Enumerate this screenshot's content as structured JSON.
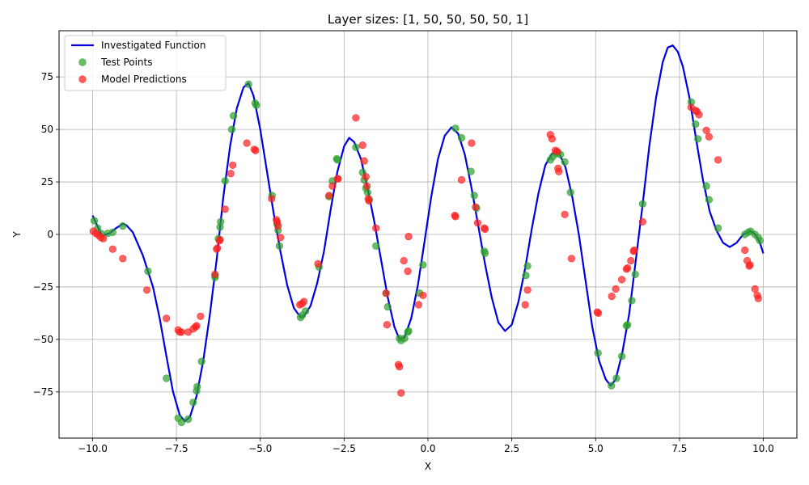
{
  "chart_data": {
    "type": "scatter",
    "title": "Layer sizes: [1, 50, 50, 50, 50, 1]",
    "xlabel": "X",
    "ylabel": "Y",
    "xlim": [
      -11,
      11
    ],
    "ylim": [
      -97,
      97
    ],
    "xticks": [
      -10,
      -7.5,
      -5,
      -2.5,
      0,
      2.5,
      5,
      7.5,
      10
    ],
    "xtick_labels": [
      "−10.0",
      "−7.5",
      "−5.0",
      "−2.5",
      "0.0",
      "2.5",
      "5.0",
      "7.5",
      "10.0"
    ],
    "yticks": [
      -75,
      -50,
      -25,
      0,
      25,
      50,
      75
    ],
    "ytick_labels": [
      "−75",
      "−50",
      "−25",
      "0",
      "25",
      "50",
      "75"
    ],
    "grid": true,
    "legend_position": "top-left",
    "legend": [
      {
        "label": "Investigated Function",
        "kind": "line",
        "color": "#0000dd"
      },
      {
        "label": "Test Points",
        "kind": "marker",
        "color": "#2ca02c"
      },
      {
        "label": "Model Predictions",
        "kind": "marker",
        "color": "#ff2020"
      }
    ],
    "series": [
      {
        "name": "Investigated Function",
        "kind": "line",
        "color": "#0000dd",
        "points": [
          [
            -10.0,
            9
          ],
          [
            -9.8,
            2
          ],
          [
            -9.7,
            -0.5
          ],
          [
            -9.5,
            0.5
          ],
          [
            -9.3,
            3
          ],
          [
            -9.1,
            5
          ],
          [
            -9.0,
            4.5
          ],
          [
            -8.8,
            1
          ],
          [
            -8.5,
            -10
          ],
          [
            -8.2,
            -25
          ],
          [
            -8.0,
            -40
          ],
          [
            -7.8,
            -58
          ],
          [
            -7.6,
            -75
          ],
          [
            -7.4,
            -86
          ],
          [
            -7.25,
            -89
          ],
          [
            -7.1,
            -87
          ],
          [
            -6.9,
            -77
          ],
          [
            -6.7,
            -60
          ],
          [
            -6.5,
            -38
          ],
          [
            -6.3,
            -12
          ],
          [
            -6.1,
            18
          ],
          [
            -5.9,
            42
          ],
          [
            -5.7,
            60
          ],
          [
            -5.5,
            70
          ],
          [
            -5.35,
            72
          ],
          [
            -5.2,
            66
          ],
          [
            -5.0,
            50
          ],
          [
            -4.8,
            30
          ],
          [
            -4.6,
            10
          ],
          [
            -4.4,
            -8
          ],
          [
            -4.2,
            -24
          ],
          [
            -4.0,
            -35
          ],
          [
            -3.8,
            -39.5
          ],
          [
            -3.7,
            -39
          ],
          [
            -3.5,
            -34
          ],
          [
            -3.3,
            -23
          ],
          [
            -3.1,
            -8
          ],
          [
            -2.9,
            12
          ],
          [
            -2.7,
            30
          ],
          [
            -2.5,
            42
          ],
          [
            -2.35,
            46
          ],
          [
            -2.2,
            44
          ],
          [
            -2.0,
            36
          ],
          [
            -1.8,
            22
          ],
          [
            -1.6,
            6
          ],
          [
            -1.4,
            -12
          ],
          [
            -1.2,
            -30
          ],
          [
            -1.0,
            -44
          ],
          [
            -0.85,
            -50
          ],
          [
            -0.7,
            -49
          ],
          [
            -0.5,
            -40
          ],
          [
            -0.3,
            -24
          ],
          [
            -0.1,
            -3
          ],
          [
            0.1,
            18
          ],
          [
            0.3,
            36
          ],
          [
            0.5,
            47
          ],
          [
            0.7,
            51
          ],
          [
            0.9,
            48
          ],
          [
            1.1,
            38
          ],
          [
            1.3,
            22
          ],
          [
            1.5,
            4
          ],
          [
            1.7,
            -14
          ],
          [
            1.9,
            -30
          ],
          [
            2.1,
            -42
          ],
          [
            2.3,
            -46
          ],
          [
            2.5,
            -43
          ],
          [
            2.7,
            -32
          ],
          [
            2.9,
            -16
          ],
          [
            3.1,
            3
          ],
          [
            3.3,
            20
          ],
          [
            3.5,
            33
          ],
          [
            3.7,
            38.5
          ],
          [
            3.9,
            39
          ],
          [
            4.1,
            32
          ],
          [
            4.3,
            18
          ],
          [
            4.5,
            0
          ],
          [
            4.7,
            -22
          ],
          [
            4.9,
            -44
          ],
          [
            5.1,
            -60
          ],
          [
            5.3,
            -69
          ],
          [
            5.45,
            -72
          ],
          [
            5.6,
            -69
          ],
          [
            5.8,
            -56
          ],
          [
            6.0,
            -38
          ],
          [
            6.2,
            -12
          ],
          [
            6.4,
            14
          ],
          [
            6.6,
            42
          ],
          [
            6.8,
            65
          ],
          [
            7.0,
            82
          ],
          [
            7.15,
            89
          ],
          [
            7.3,
            90
          ],
          [
            7.45,
            87
          ],
          [
            7.6,
            80
          ],
          [
            7.8,
            65
          ],
          [
            8.0,
            45
          ],
          [
            8.2,
            26
          ],
          [
            8.4,
            11
          ],
          [
            8.6,
            2
          ],
          [
            8.8,
            -4
          ],
          [
            9.0,
            -6
          ],
          [
            9.2,
            -4
          ],
          [
            9.4,
            0
          ],
          [
            9.6,
            1.5
          ],
          [
            9.7,
            1
          ],
          [
            9.8,
            -1
          ],
          [
            9.9,
            -4
          ],
          [
            10.0,
            -9
          ]
        ]
      },
      {
        "name": "Test Points",
        "kind": "scatter",
        "color": "#2ca02c",
        "points": [
          [
            -9.95,
            6.5
          ],
          [
            -9.85,
            3
          ],
          [
            -9.75,
            0.5
          ],
          [
            -9.55,
            0.5
          ],
          [
            -9.4,
            1
          ],
          [
            -9.1,
            4
          ],
          [
            -8.35,
            -17.5
          ],
          [
            -7.8,
            -68.5
          ],
          [
            -7.45,
            -87.5
          ],
          [
            -7.35,
            -89.5
          ],
          [
            -7.15,
            -88
          ],
          [
            -7.0,
            -80
          ],
          [
            -6.9,
            -74.5
          ],
          [
            -6.88,
            -72.5
          ],
          [
            -6.75,
            -60.5
          ],
          [
            -6.35,
            -20.5
          ],
          [
            -6.35,
            -19.5
          ],
          [
            -6.25,
            -2
          ],
          [
            -6.2,
            3.5
          ],
          [
            -6.18,
            6
          ],
          [
            -6.05,
            25.5
          ],
          [
            -5.85,
            50
          ],
          [
            -5.8,
            56.5
          ],
          [
            -5.35,
            71.5
          ],
          [
            -5.15,
            62.5
          ],
          [
            -5.12,
            61.5
          ],
          [
            -4.65,
            18.5
          ],
          [
            -4.5,
            5
          ],
          [
            -4.47,
            2
          ],
          [
            -4.43,
            -5.5
          ],
          [
            -3.8,
            -39.5
          ],
          [
            -3.75,
            -38.5
          ],
          [
            -3.65,
            -36.5
          ],
          [
            -3.25,
            -15.5
          ],
          [
            -2.95,
            18
          ],
          [
            -2.85,
            25.5
          ],
          [
            -2.72,
            36
          ],
          [
            -2.7,
            35.5
          ],
          [
            -2.15,
            41.5
          ],
          [
            -1.95,
            29.5
          ],
          [
            -1.9,
            26
          ],
          [
            -1.85,
            22
          ],
          [
            -1.8,
            20
          ],
          [
            -1.75,
            16.5
          ],
          [
            -1.55,
            -5.5
          ],
          [
            -1.25,
            -28
          ],
          [
            -1.2,
            -34.5
          ],
          [
            -0.85,
            -49.5
          ],
          [
            -0.8,
            -50.5
          ],
          [
            -0.7,
            -49.5
          ],
          [
            -0.6,
            -46.5
          ],
          [
            -0.58,
            -46
          ],
          [
            -0.25,
            -28
          ],
          [
            -0.15,
            -14.5
          ],
          [
            0.82,
            50.5
          ],
          [
            1.0,
            46
          ],
          [
            1.28,
            30
          ],
          [
            1.38,
            18.5
          ],
          [
            1.45,
            12.5
          ],
          [
            1.68,
            -8
          ],
          [
            1.7,
            -9
          ],
          [
            2.92,
            -19.5
          ],
          [
            2.97,
            -15
          ],
          [
            3.65,
            35.5
          ],
          [
            3.72,
            37
          ],
          [
            3.82,
            38.5
          ],
          [
            3.88,
            39
          ],
          [
            3.95,
            38
          ],
          [
            4.08,
            34.5
          ],
          [
            4.25,
            20
          ],
          [
            5.07,
            -56.5
          ],
          [
            5.47,
            -72
          ],
          [
            5.62,
            -68.5
          ],
          [
            5.78,
            -58
          ],
          [
            5.92,
            -43.5
          ],
          [
            5.95,
            -43
          ],
          [
            6.08,
            -31.5
          ],
          [
            6.18,
            -19
          ],
          [
            6.4,
            14.5
          ],
          [
            7.85,
            63
          ],
          [
            7.98,
            52.5
          ],
          [
            8.05,
            45.5
          ],
          [
            8.3,
            23
          ],
          [
            8.38,
            16.5
          ],
          [
            8.65,
            3
          ],
          [
            9.45,
            0
          ],
          [
            9.55,
            1
          ],
          [
            9.62,
            1.5
          ],
          [
            9.75,
            0
          ],
          [
            9.85,
            -1.5
          ],
          [
            9.9,
            -3
          ]
        ]
      },
      {
        "name": "Model Predictions",
        "kind": "scatter",
        "color": "#ff2020",
        "points": [
          [
            -9.98,
            1.5
          ],
          [
            -9.9,
            0.5
          ],
          [
            -9.82,
            -0.5
          ],
          [
            -9.75,
            -1.5
          ],
          [
            -9.68,
            -2
          ],
          [
            -9.4,
            -7
          ],
          [
            -9.1,
            -11.5
          ],
          [
            -8.38,
            -26.5
          ],
          [
            -7.8,
            -40
          ],
          [
            -7.45,
            -45.5
          ],
          [
            -7.4,
            -46.5
          ],
          [
            -7.35,
            -46.5
          ],
          [
            -7.15,
            -46.5
          ],
          [
            -7.0,
            -45
          ],
          [
            -6.93,
            -44
          ],
          [
            -6.9,
            -43.5
          ],
          [
            -6.78,
            -39
          ],
          [
            -6.35,
            -19
          ],
          [
            -6.3,
            -7
          ],
          [
            -6.28,
            -6.5
          ],
          [
            -6.22,
            -3
          ],
          [
            -6.2,
            -2.5
          ],
          [
            -6.05,
            12
          ],
          [
            -5.88,
            29
          ],
          [
            -5.82,
            33
          ],
          [
            -5.4,
            43.5
          ],
          [
            -5.18,
            40.5
          ],
          [
            -5.14,
            40
          ],
          [
            -4.66,
            17
          ],
          [
            -4.52,
            7
          ],
          [
            -4.5,
            6
          ],
          [
            -4.47,
            4
          ],
          [
            -4.4,
            -1.5
          ],
          [
            -3.82,
            -33.5
          ],
          [
            -3.76,
            -33
          ],
          [
            -3.7,
            -32
          ],
          [
            -3.28,
            -14
          ],
          [
            -2.95,
            18.5
          ],
          [
            -2.85,
            23
          ],
          [
            -2.7,
            26.5
          ],
          [
            -2.68,
            26.5
          ],
          [
            -2.15,
            55.5
          ],
          [
            -1.95,
            42.5
          ],
          [
            -1.9,
            35
          ],
          [
            -1.85,
            27.5
          ],
          [
            -1.82,
            23
          ],
          [
            -1.78,
            17
          ],
          [
            -1.76,
            16
          ],
          [
            -1.55,
            3
          ],
          [
            -1.25,
            -28
          ],
          [
            -1.22,
            -43
          ],
          [
            -0.88,
            -62
          ],
          [
            -0.85,
            -63
          ],
          [
            -0.8,
            -75.5
          ],
          [
            -0.72,
            -12.5
          ],
          [
            -0.6,
            -17.5
          ],
          [
            -0.58,
            -1
          ],
          [
            -0.28,
            -33.5
          ],
          [
            -0.15,
            -29
          ],
          [
            0.8,
            9
          ],
          [
            0.82,
            8.5
          ],
          [
            1.0,
            26
          ],
          [
            1.3,
            43.5
          ],
          [
            1.42,
            13
          ],
          [
            1.48,
            5.5
          ],
          [
            1.68,
            3
          ],
          [
            1.7,
            2.5
          ],
          [
            2.9,
            -33.5
          ],
          [
            2.97,
            -26.5
          ],
          [
            3.65,
            47.5
          ],
          [
            3.7,
            45.5
          ],
          [
            3.8,
            40
          ],
          [
            3.85,
            39.5
          ],
          [
            3.88,
            31.5
          ],
          [
            3.9,
            30
          ],
          [
            4.08,
            9.5
          ],
          [
            4.28,
            -11.5
          ],
          [
            5.05,
            -37
          ],
          [
            5.08,
            -37.5
          ],
          [
            5.48,
            -29.5
          ],
          [
            5.6,
            -26
          ],
          [
            5.78,
            -21.5
          ],
          [
            5.92,
            -16.5
          ],
          [
            5.95,
            -16
          ],
          [
            6.05,
            -12.5
          ],
          [
            6.13,
            -8
          ],
          [
            6.15,
            -7.5
          ],
          [
            6.4,
            6
          ],
          [
            7.85,
            60.5
          ],
          [
            7.98,
            59
          ],
          [
            8.02,
            58.5
          ],
          [
            8.08,
            57
          ],
          [
            8.3,
            49.5
          ],
          [
            8.38,
            46.5
          ],
          [
            8.65,
            35.5
          ],
          [
            9.45,
            -7.5
          ],
          [
            9.52,
            -12.5
          ],
          [
            9.58,
            -15
          ],
          [
            9.6,
            -14.5
          ],
          [
            9.75,
            -26
          ],
          [
            9.82,
            -29
          ],
          [
            9.85,
            -30.5
          ]
        ]
      }
    ]
  }
}
